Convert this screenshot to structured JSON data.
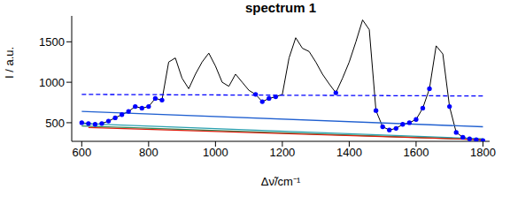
{
  "chart_data": {
    "type": "line",
    "title": "spectrum 1",
    "x_label": "Δν̃/cm⁻¹",
    "y_label": "I / a.u.",
    "xlim": [
      570,
      1820
    ],
    "xticks": [
      600,
      800,
      1000,
      1200,
      1400,
      1600,
      1800
    ],
    "ylim": [
      270,
      1820
    ],
    "yticks": [
      500,
      1000,
      1500
    ],
    "grid": false,
    "series": [
      {
        "type": "line",
        "color": "#000000",
        "line_style": "solid",
        "x": [
          600,
          620,
          640,
          660,
          680,
          700,
          720,
          740,
          760,
          780,
          800,
          820,
          840,
          860,
          880,
          900,
          920,
          940,
          960,
          980,
          1000,
          1020,
          1040,
          1060,
          1080,
          1100,
          1120,
          1140,
          1160,
          1180,
          1200,
          1220,
          1240,
          1260,
          1280,
          1300,
          1320,
          1340,
          1360,
          1380,
          1400,
          1420,
          1440,
          1460,
          1480,
          1500,
          1520,
          1540,
          1560,
          1580,
          1600,
          1620,
          1640,
          1660,
          1680,
          1700,
          1720,
          1740,
          1760,
          1780,
          1800
        ],
        "values": [
          500,
          490,
          480,
          490,
          520,
          560,
          600,
          640,
          700,
          680,
          700,
          800,
          780,
          1250,
          1300,
          1050,
          920,
          1100,
          1250,
          1360,
          1200,
          1000,
          950,
          1100,
          1000,
          900,
          850,
          760,
          800,
          820,
          850,
          1300,
          1550,
          1420,
          1380,
          1250,
          1100,
          980,
          870,
          1050,
          1250,
          1500,
          1770,
          1650,
          650,
          450,
          410,
          430,
          480,
          500,
          540,
          680,
          920,
          1450,
          1350,
          700,
          380,
          320,
          300,
          290,
          280
        ]
      },
      {
        "type": "scatter",
        "color": "#0000ff",
        "marker": "circle",
        "x": [
          600,
          620,
          640,
          660,
          680,
          700,
          720,
          740,
          760,
          780,
          800,
          820,
          840,
          1120,
          1140,
          1160,
          1180,
          1360,
          1480,
          1500,
          1520,
          1540,
          1560,
          1580,
          1600,
          1620,
          1640,
          1700,
          1720,
          1740,
          1760,
          1780,
          1800
        ],
        "values": [
          500,
          490,
          480,
          490,
          520,
          560,
          600,
          640,
          700,
          680,
          700,
          800,
          780,
          850,
          760,
          800,
          820,
          870,
          650,
          450,
          410,
          430,
          480,
          500,
          540,
          680,
          920,
          700,
          380,
          320,
          300,
          290,
          280
        ]
      },
      {
        "type": "line",
        "color": "#0000ff",
        "line_style": "dashed",
        "x": [
          600,
          1800
        ],
        "values": [
          850,
          830
        ]
      },
      {
        "type": "line",
        "color": "#1f5fd0",
        "line_style": "solid",
        "x": [
          600,
          1800
        ],
        "values": [
          640,
          450
        ]
      },
      {
        "type": "line",
        "color": "#2aa0b0",
        "line_style": "solid",
        "x": [
          600,
          1800
        ],
        "values": [
          490,
          300
        ]
      },
      {
        "type": "line",
        "color": "#2e8b57",
        "line_style": "solid",
        "x": [
          600,
          1800
        ],
        "values": [
          460,
          290
        ]
      },
      {
        "type": "line",
        "color": "#e02010",
        "line_style": "solid",
        "x": [
          620,
          1800
        ],
        "values": [
          440,
          290
        ]
      }
    ]
  }
}
